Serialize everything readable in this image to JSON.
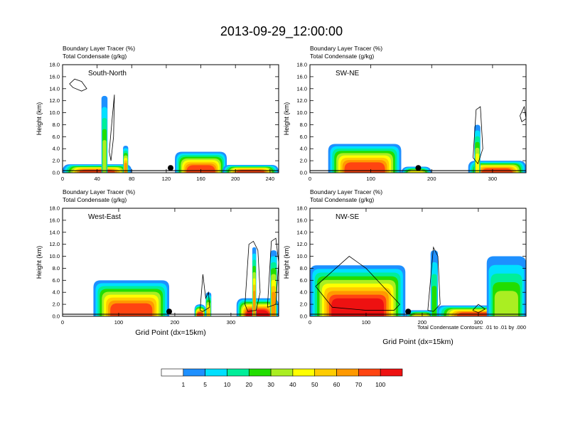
{
  "title": "2013-09-29_12:00:00",
  "field_label": "Boundary Layer Tracer",
  "field_units": "(%)",
  "contour_label": "Total Condensate",
  "contour_units": "(g/kg)",
  "xlabel": "Grid Point (dx=15km)",
  "ylabel": "Height (km)",
  "contour_info": "Total Condensate Contours: .01 to .01 by .000",
  "colors": {
    "levels": [
      "#ffffff",
      "#1e90ff",
      "#00e0ff",
      "#00ee99",
      "#22dd00",
      "#aaee22",
      "#ffff00",
      "#ffcc00",
      "#ff9900",
      "#ff4411",
      "#ee1111"
    ],
    "contour": "#000000",
    "marker": "#000000"
  },
  "colorbar": {
    "labels": [
      "1",
      "5",
      "10",
      "20",
      "30",
      "40",
      "50",
      "60",
      "70",
      "100"
    ]
  },
  "chart_data": [
    {
      "type": "heatmap",
      "name": "South-North",
      "xlim": [
        0,
        250
      ],
      "ylim": [
        0,
        18
      ],
      "xticks": [
        "0",
        "40",
        "80",
        "120",
        "160",
        "200",
        "240"
      ],
      "yticks": [
        "0.0",
        "2.0",
        "4.0",
        "6.0",
        "8.0",
        "10.0",
        "12.0",
        "14.0",
        "16.0",
        "18.0"
      ],
      "marker_x": 125,
      "tracer_blobs": [
        {
          "x0": 0,
          "x1": 80,
          "top": 1.4,
          "peak": 95
        },
        {
          "x0": 70,
          "x1": 76,
          "top": 4.5,
          "peak": 60
        },
        {
          "x0": 45,
          "x1": 52,
          "top": 12.8,
          "peak": 30
        },
        {
          "x0": 130,
          "x1": 190,
          "top": 3.5,
          "peak": 90
        },
        {
          "x0": 185,
          "x1": 250,
          "top": 1.3,
          "peak": 80
        }
      ],
      "contours": [
        {
          "x": [
            8,
            14,
            22,
            28,
            22,
            12,
            8
          ],
          "y": [
            14.8,
            15.6,
            15.2,
            14.0,
            13.6,
            14.2,
            14.8
          ]
        },
        {
          "x": [
            54,
            58,
            60,
            59,
            56,
            54
          ],
          "y": [
            3.5,
            10.0,
            13.0,
            6.0,
            2.0,
            3.5
          ]
        }
      ]
    },
    {
      "type": "heatmap",
      "name": "SW-NE",
      "xlim": [
        0,
        355
      ],
      "ylim": [
        0,
        18
      ],
      "xticks": [
        "0",
        "100",
        "200",
        "300"
      ],
      "yticks": [
        "0.0",
        "2.0",
        "4.0",
        "6.0",
        "8.0",
        "10.0",
        "12.0",
        "14.0",
        "16.0",
        "18.0"
      ],
      "marker_x": 178,
      "tracer_blobs": [
        {
          "x0": 30,
          "x1": 150,
          "top": 4.8,
          "peak": 95
        },
        {
          "x0": 150,
          "x1": 200,
          "top": 1.0,
          "peak": 40
        },
        {
          "x0": 260,
          "x1": 355,
          "top": 2.0,
          "peak": 95
        },
        {
          "x0": 270,
          "x1": 280,
          "top": 8.0,
          "peak": 40
        }
      ],
      "contours": [
        {
          "x": [
            268,
            273,
            280,
            284,
            276,
            268
          ],
          "y": [
            2.5,
            10.5,
            11.0,
            4.0,
            1.5,
            2.5
          ]
        },
        {
          "x": [
            345,
            352,
            355,
            348,
            345
          ],
          "y": [
            9.5,
            11.0,
            9.0,
            8.5,
            9.5
          ]
        }
      ]
    },
    {
      "type": "heatmap",
      "name": "West-East",
      "xlim": [
        0,
        385
      ],
      "ylim": [
        0,
        18
      ],
      "xticks": [
        "0",
        "100",
        "200",
        "300"
      ],
      "yticks": [
        "0.0",
        "2.0",
        "4.0",
        "6.0",
        "8.0",
        "10.0",
        "12.0",
        "14.0",
        "16.0",
        "18.0"
      ],
      "marker_x": 190,
      "tracer_blobs": [
        {
          "x0": 55,
          "x1": 190,
          "top": 6.0,
          "peak": 95
        },
        {
          "x0": 235,
          "x1": 255,
          "top": 2.0,
          "peak": 80
        },
        {
          "x0": 255,
          "x1": 265,
          "top": 4.0,
          "peak": 50
        },
        {
          "x0": 310,
          "x1": 385,
          "top": 3.0,
          "peak": 100
        },
        {
          "x0": 338,
          "x1": 345,
          "top": 11.5,
          "peak": 60
        },
        {
          "x0": 370,
          "x1": 382,
          "top": 11.0,
          "peak": 60
        }
      ],
      "contours": [
        {
          "x": [
            245,
            250,
            255,
            260,
            262,
            250,
            245
          ],
          "y": [
            1.0,
            7.0,
            3.0,
            4.0,
            1.5,
            0.8,
            1.0
          ]
        },
        {
          "x": [
            325,
            332,
            340,
            348,
            352,
            345,
            330,
            325
          ],
          "y": [
            2.0,
            12.0,
            12.5,
            11.0,
            4.0,
            1.0,
            0.8,
            2.0
          ]
        },
        {
          "x": [
            365,
            372,
            380,
            385,
            380,
            365
          ],
          "y": [
            1.5,
            12.5,
            13.0,
            9.0,
            2.0,
            1.5
          ]
        }
      ]
    },
    {
      "type": "heatmap",
      "name": "NW-SE",
      "xlim": [
        0,
        385
      ],
      "ylim": [
        0,
        18
      ],
      "xticks": [
        "0",
        "100",
        "200",
        "300"
      ],
      "yticks": [
        "0.0",
        "2.0",
        "4.0",
        "6.0",
        "8.0",
        "10.0",
        "12.0",
        "14.0",
        "16.0",
        "18.0"
      ],
      "marker_x": 175,
      "tracer_blobs": [
        {
          "x0": 0,
          "x1": 170,
          "top": 8.5,
          "peak": 100
        },
        {
          "x0": 170,
          "x1": 225,
          "top": 1.0,
          "peak": 40
        },
        {
          "x0": 225,
          "x1": 385,
          "top": 1.8,
          "peak": 95
        },
        {
          "x0": 315,
          "x1": 385,
          "top": 10.0,
          "peak": 35
        },
        {
          "x0": 215,
          "x1": 228,
          "top": 11.0,
          "peak": 25
        }
      ],
      "contours": [
        {
          "x": [
            10,
            40,
            70,
            100,
            130,
            160,
            150,
            100,
            40,
            10
          ],
          "y": [
            5.0,
            7.5,
            10.0,
            8.0,
            5.0,
            2.0,
            1.0,
            1.0,
            1.5,
            5.0
          ]
        },
        {
          "x": [
            210,
            220,
            228,
            232,
            220,
            210
          ],
          "y": [
            1.0,
            11.5,
            10.0,
            2.0,
            0.8,
            1.0
          ]
        },
        {
          "x": [
            290,
            300,
            312,
            300,
            290
          ],
          "y": [
            1.0,
            2.0,
            1.2,
            0.6,
            1.0
          ]
        }
      ]
    }
  ]
}
